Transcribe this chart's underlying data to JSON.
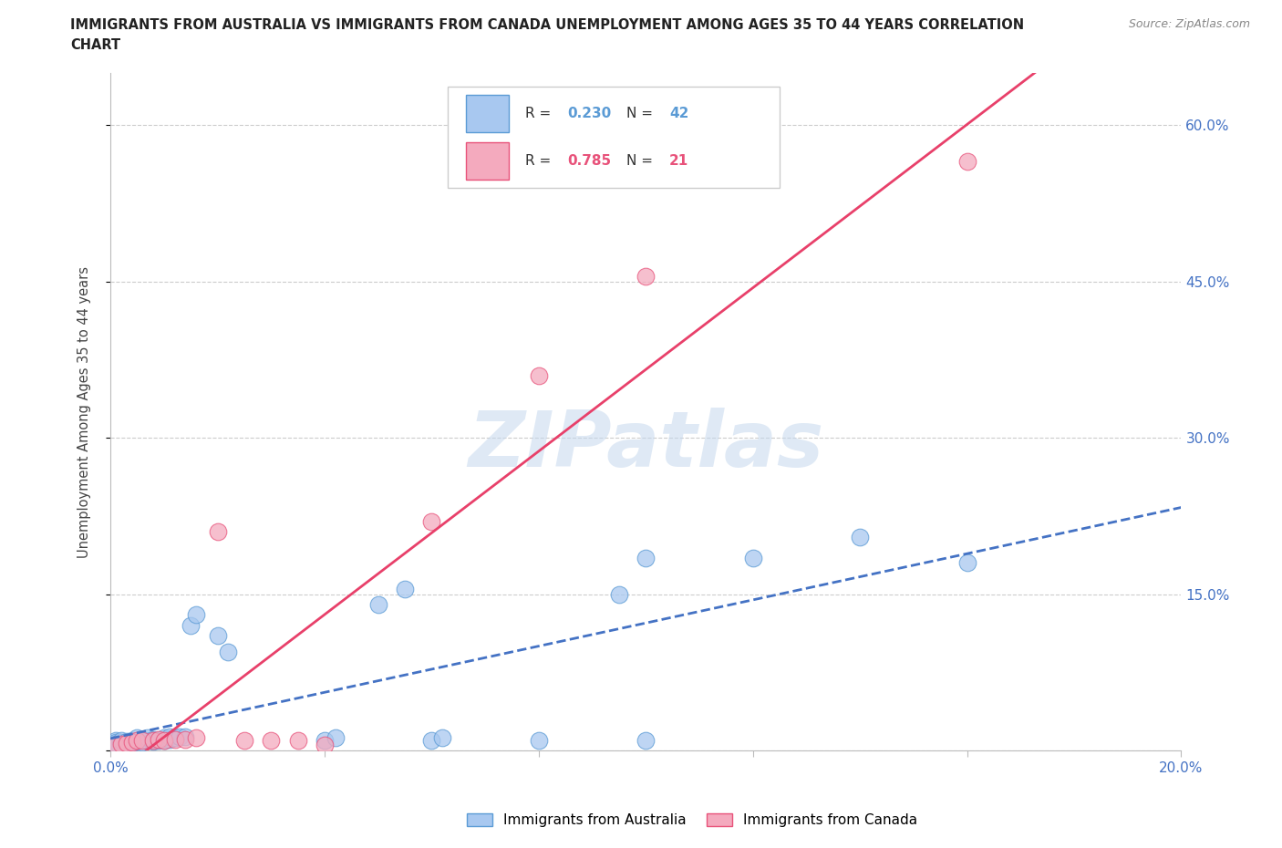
{
  "title_line1": "IMMIGRANTS FROM AUSTRALIA VS IMMIGRANTS FROM CANADA UNEMPLOYMENT AMONG AGES 35 TO 44 YEARS CORRELATION",
  "title_line2": "CHART",
  "source": "Source: ZipAtlas.com",
  "ylabel": "Unemployment Among Ages 35 to 44 years",
  "xlim": [
    0.0,
    0.2
  ],
  "ylim": [
    0.0,
    0.65
  ],
  "ytick_positions": [
    0.0,
    0.15,
    0.3,
    0.45,
    0.6
  ],
  "ytick_labels": [
    "",
    "15.0%",
    "30.0%",
    "45.0%",
    "60.0%"
  ],
  "xtick_positions": [
    0.0,
    0.04,
    0.08,
    0.12,
    0.16,
    0.2
  ],
  "xtick_labels": [
    "0.0%",
    "",
    "",
    "",
    "",
    "20.0%"
  ],
  "australia_color_fill": "#A8C8F0",
  "australia_color_edge": "#5B9BD5",
  "canada_color_fill": "#F4AABE",
  "canada_color_edge": "#E8527A",
  "australia_R": 0.23,
  "australia_N": 42,
  "canada_R": 0.785,
  "canada_N": 21,
  "australia_line_color": "#4472C4",
  "canada_line_color": "#E8406A",
  "watermark_color": "#C5D8EE",
  "background_color": "#FFFFFF",
  "grid_color": "#CCCCCC",
  "australia_points_x": [
    0.001,
    0.001,
    0.001,
    0.002,
    0.002,
    0.003,
    0.003,
    0.004,
    0.004,
    0.005,
    0.005,
    0.006,
    0.006,
    0.007,
    0.007,
    0.008,
    0.008,
    0.009,
    0.01,
    0.01,
    0.011,
    0.011,
    0.012,
    0.013,
    0.014,
    0.015,
    0.016,
    0.02,
    0.022,
    0.04,
    0.042,
    0.06,
    0.062,
    0.08,
    0.095,
    0.1,
    0.1,
    0.12,
    0.14,
    0.05,
    0.055,
    0.16
  ],
  "australia_points_y": [
    0.01,
    0.008,
    0.006,
    0.008,
    0.01,
    0.005,
    0.009,
    0.007,
    0.01,
    0.009,
    0.012,
    0.008,
    0.011,
    0.01,
    0.012,
    0.009,
    0.011,
    0.01,
    0.01,
    0.012,
    0.011,
    0.013,
    0.012,
    0.013,
    0.013,
    0.12,
    0.13,
    0.11,
    0.095,
    0.01,
    0.012,
    0.01,
    0.012,
    0.01,
    0.15,
    0.01,
    0.185,
    0.185,
    0.205,
    0.14,
    0.155,
    0.18
  ],
  "canada_points_x": [
    0.001,
    0.002,
    0.003,
    0.004,
    0.005,
    0.006,
    0.008,
    0.009,
    0.01,
    0.012,
    0.014,
    0.016,
    0.02,
    0.025,
    0.03,
    0.035,
    0.04,
    0.06,
    0.08,
    0.1,
    0.16
  ],
  "canada_points_y": [
    0.005,
    0.006,
    0.007,
    0.008,
    0.01,
    0.01,
    0.01,
    0.011,
    0.01,
    0.011,
    0.011,
    0.012,
    0.21,
    0.01,
    0.01,
    0.01,
    0.005,
    0.22,
    0.36,
    0.455,
    0.565
  ]
}
